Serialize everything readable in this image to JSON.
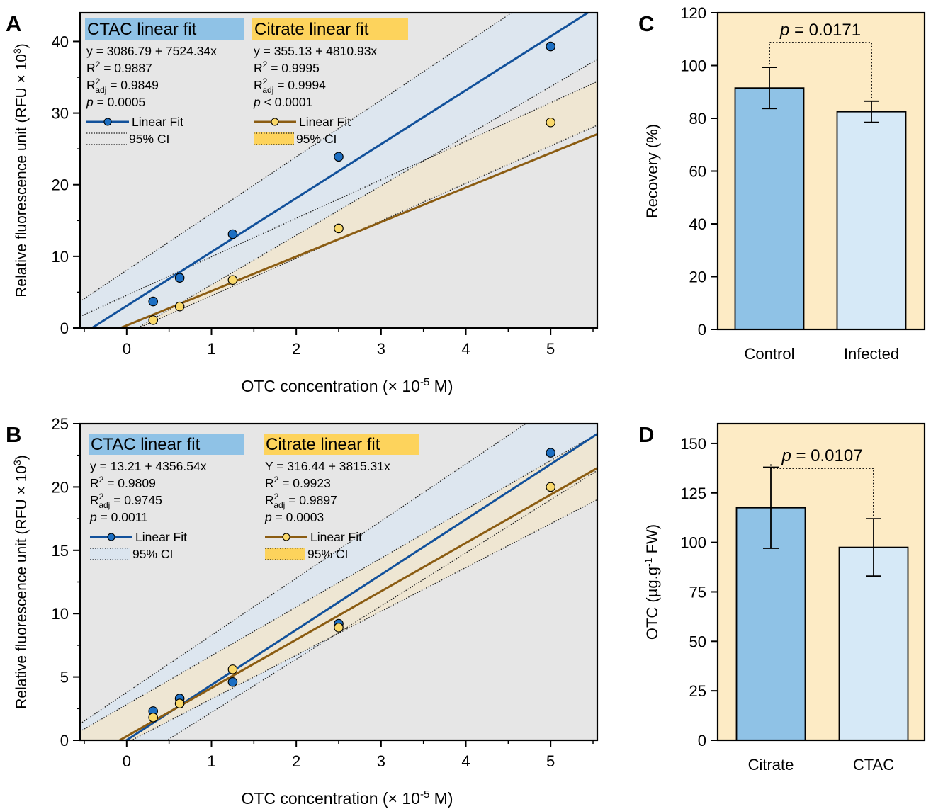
{
  "colors": {
    "scatter_bg": "#e6e6e6",
    "bar_bg": "#fdebc5",
    "ctac_line": "#12519b",
    "ctac_point": "#1d6fc2",
    "ctac_band": "#dbe5ef",
    "citrate_line": "#8b5c12",
    "citrate_point": "#f9d86a",
    "citrate_band": "#efe6cf",
    "ctac_label_bg": "#8fc2e6",
    "citrate_label_bg": "#fdd35c",
    "bar_dark": "#8fc2e6",
    "bar_light": "#d6e9f7"
  },
  "chart_data": [
    {
      "panel": "A",
      "type": "scatter",
      "xlabel_main": "OTC concentration (× 10",
      "xlabel_sup": "-5",
      "xlabel_end": " M)",
      "ylabel_main": "Relative fluorescence unit (RFU × 10",
      "ylabel_sup": "3",
      "ylabel_end": ")",
      "xlim": [
        -0.55,
        5.55
      ],
      "ylim": [
        0,
        44
      ],
      "xticks": [
        0,
        1,
        2,
        3,
        4,
        5
      ],
      "yticks": [
        0,
        10,
        20,
        30,
        40
      ],
      "series": [
        {
          "key": "ctac",
          "label": "CTAC linear fit",
          "eq": "y = 3086.79 + 7524.34x",
          "r2_label": "R",
          "r2_sup": "2",
          "r2_val": " = 0.9887",
          "r2adj_label": "R",
          "r2adj_sup": "2",
          "r2adj_sub": "adj",
          "r2adj_val": " = 0.9849",
          "p_label": "p",
          "p_val": " = 0.0005",
          "legend_fit": "Linear Fit",
          "legend_ci": "95% CI",
          "intercept": 3.08679,
          "slope": 7.52434,
          "ci_band": [
            [
              -0.55,
              -4.7,
              3.7
            ],
            [
              5.55,
              37.5,
              52.0
            ]
          ],
          "points": [
            [
              0.3125,
              3.7
            ],
            [
              0.625,
              7.0
            ],
            [
              1.25,
              13.1
            ],
            [
              2.5,
              23.9
            ],
            [
              5.0,
              39.3
            ]
          ]
        },
        {
          "key": "citrate",
          "label": "Citrate linear fit",
          "eq": "y = 355.13 + 4810.93x",
          "r2_label": "R",
          "r2_sup": "2",
          "r2_val": " = 0.9995",
          "r2adj_label": "R",
          "r2adj_sup": "2",
          "r2adj_sub": "adj",
          "r2adj_val": " = 0.9994",
          "p_label": "p",
          "p_op": " < 0.0001",
          "legend_fit": "Linear Fit",
          "legend_ci": "95% CI",
          "intercept": 0.35513,
          "slope": 4.81093,
          "ci_band": [
            [
              -0.55,
              -3.6,
              1.6
            ],
            [
              5.55,
              28.3,
              34.4
            ]
          ],
          "points": [
            [
              0.3125,
              1.1
            ],
            [
              0.625,
              3.0
            ],
            [
              1.25,
              6.7
            ],
            [
              2.5,
              13.9
            ],
            [
              5.0,
              28.7
            ]
          ]
        }
      ]
    },
    {
      "panel": "B",
      "type": "scatter",
      "xlabel_main": "OTC concentration (× 10",
      "xlabel_sup": "-5",
      "xlabel_end": " M)",
      "ylabel_main": "Relative fluorescence unit (RFU × 10",
      "ylabel_sup": "3",
      "ylabel_end": ")",
      "xlim": [
        -0.55,
        5.55
      ],
      "ylim": [
        0,
        25
      ],
      "xticks": [
        0,
        1,
        2,
        3,
        4,
        5
      ],
      "yticks": [
        0,
        5,
        10,
        15,
        20,
        25
      ],
      "series": [
        {
          "key": "ctac",
          "label": "CTAC linear fit",
          "eq": "y = 13.21 + 4356.54x",
          "r2_label": "R",
          "r2_sup": "2",
          "r2_val": " = 0.9809",
          "r2adj_label": "R",
          "r2adj_sup": "2",
          "r2adj_sub": "adj",
          "r2adj_val": " = 0.9745",
          "p_label": "p",
          "p_val": " = 0.0011",
          "legend_fit": "Linear Fit",
          "legend_ci": "95% CI",
          "intercept": 0.01321,
          "slope": 4.35654,
          "ci_band": [
            [
              -0.55,
              -4.3,
              1.3
            ],
            [
              5.55,
              21.3,
              28.8
            ]
          ],
          "points": [
            [
              0.3125,
              2.3
            ],
            [
              0.625,
              3.3
            ],
            [
              1.25,
              4.6
            ],
            [
              2.5,
              9.2
            ],
            [
              5.0,
              22.7
            ]
          ]
        },
        {
          "key": "citrate",
          "label": "Citrate linear fit",
          "eq": "Y = 316.44 + 3815.31x",
          "r2_label": "R",
          "r2_sup": "2",
          "r2_val": " = 0.9923",
          "r2adj_label": "R",
          "r2adj_sup": "2",
          "r2adj_sub": "adj",
          "r2adj_val": " = 0.9897",
          "p_label": "p",
          "p_val": " = 0.0003",
          "legend_fit": "Linear Fit",
          "legend_ci": "95% CI",
          "intercept": 0.31644,
          "slope": 3.81531,
          "ci_band": [
            [
              -0.55,
              -2.1,
              0.7
            ],
            [
              5.55,
              19.0,
              24.2
            ]
          ],
          "points": [
            [
              0.3125,
              1.8
            ],
            [
              0.625,
              2.9
            ],
            [
              1.25,
              5.6
            ],
            [
              2.5,
              8.9
            ],
            [
              5.0,
              20.0
            ]
          ]
        }
      ]
    },
    {
      "panel": "C",
      "type": "bar",
      "ylabel": "Recovery (%)",
      "ylim": [
        0,
        120
      ],
      "yticks": [
        0,
        20,
        40,
        60,
        80,
        100,
        120
      ],
      "categories": [
        "Control",
        "Infected"
      ],
      "values": [
        91.5,
        82.5
      ],
      "errors": [
        7.8,
        4.0
      ],
      "p_label": "p",
      "p_val": " = 0.0171"
    },
    {
      "panel": "D",
      "type": "bar",
      "ylabel": "OTC (µg.g",
      "ylabel_sup": "-1",
      "ylabel_end": " FW)",
      "ylim": [
        0,
        160
      ],
      "yticks": [
        0,
        25,
        50,
        75,
        100,
        125,
        150
      ],
      "categories": [
        "Citrate",
        "CTAC"
      ],
      "values": [
        117.5,
        97.5
      ],
      "errors": [
        20.5,
        14.5
      ],
      "p_label": "p",
      "p_val": " = 0.0107"
    }
  ]
}
